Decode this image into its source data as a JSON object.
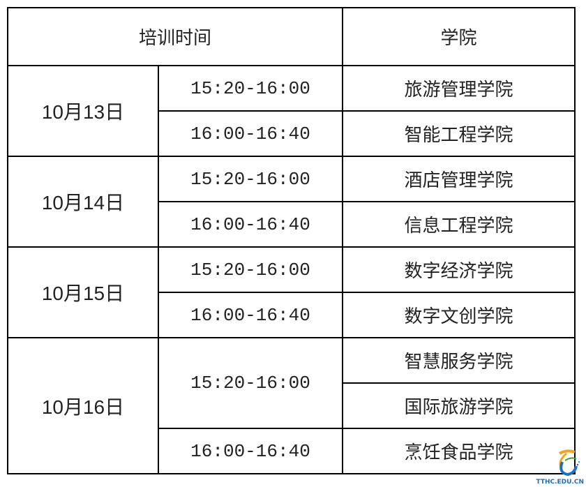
{
  "header": {
    "time": "培训时间",
    "college": "学院"
  },
  "days": [
    {
      "date": "10月13日",
      "slots": [
        {
          "time": "15:20-16:00",
          "colleges": [
            "旅游管理学院"
          ]
        },
        {
          "time": "16:00-16:40",
          "colleges": [
            "智能工程学院"
          ]
        }
      ]
    },
    {
      "date": "10月14日",
      "slots": [
        {
          "time": "15:20-16:00",
          "colleges": [
            "酒店管理学院"
          ]
        },
        {
          "time": "16:00-16:40",
          "colleges": [
            "信息工程学院"
          ]
        }
      ]
    },
    {
      "date": "10月15日",
      "slots": [
        {
          "time": "15:20-16:00",
          "colleges": [
            "数字经济学院"
          ]
        },
        {
          "time": "16:00-16:40",
          "colleges": [
            "数字文创学院"
          ]
        }
      ]
    },
    {
      "date": "10月16日",
      "slots": [
        {
          "time": "15:20-16:00",
          "colleges": [
            "智慧服务学院",
            "国际旅游学院"
          ]
        },
        {
          "time": "16:00-16:40",
          "colleges": [
            "烹饪食品学院"
          ]
        }
      ]
    }
  ],
  "watermark": {
    "icon": "school-logo",
    "text": "TTHC.EDU.CN"
  }
}
